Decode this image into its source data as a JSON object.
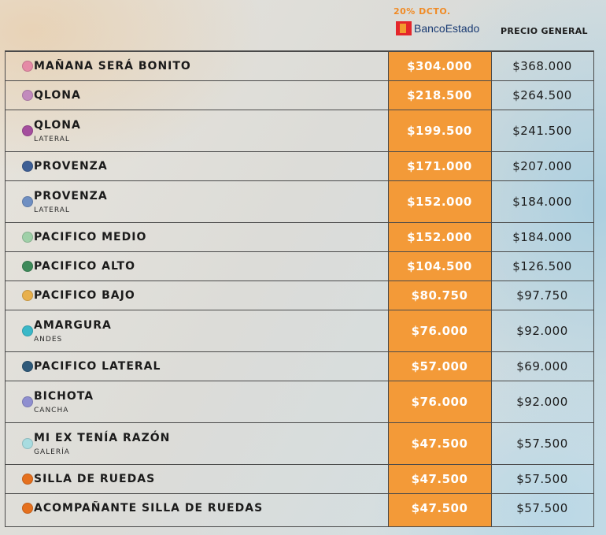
{
  "header": {
    "discount_label": "20% DCTO.",
    "bank_name": "BancoEstado",
    "general_label": "PRECIO GENERAL"
  },
  "rows": [
    {
      "name": "MAÑANA SERÁ BONITO",
      "sub": "",
      "color": "#e58aa6",
      "discount": "$304.000",
      "general": "$368.000"
    },
    {
      "name": "QLONA",
      "sub": "",
      "color": "#c28bbd",
      "discount": "$218.500",
      "general": "$264.500"
    },
    {
      "name": "QLONA",
      "sub": "LATERAL",
      "color": "#a54e9e",
      "discount": "$199.500",
      "general": "$241.500"
    },
    {
      "name": "PROVENZA",
      "sub": "",
      "color": "#3e5f95",
      "discount": "$171.000",
      "general": "$207.000"
    },
    {
      "name": "PROVENZA",
      "sub": "LATERAL",
      "color": "#6f8fc2",
      "discount": "$152.000",
      "general": "$184.000"
    },
    {
      "name": "PACIFICO MEDIO",
      "sub": "",
      "color": "#9fd0a8",
      "discount": "$152.000",
      "general": "$184.000"
    },
    {
      "name": "PACIFICO ALTO",
      "sub": "",
      "color": "#3e8a5a",
      "discount": "$104.500",
      "general": "$126.500"
    },
    {
      "name": "PACIFICO BAJO",
      "sub": "",
      "color": "#e8b04c",
      "discount": "$80.750",
      "general": "$97.750"
    },
    {
      "name": "AMARGURA",
      "sub": "ANDES",
      "color": "#3ab8c8",
      "discount": "$76.000",
      "general": "$92.000"
    },
    {
      "name": "PACIFICO LATERAL",
      "sub": "",
      "color": "#2f5a7a",
      "discount": "$57.000",
      "general": "$69.000"
    },
    {
      "name": "BICHOTA",
      "sub": "CANCHA",
      "color": "#8f8fd0",
      "discount": "$76.000",
      "general": "$92.000"
    },
    {
      "name": "MI EX TENÍA RAZÓN",
      "sub": "GALERÍA",
      "color": "#a8dce0",
      "discount": "$47.500",
      "general": "$57.500"
    },
    {
      "name": "SILLA DE RUEDAS",
      "sub": "",
      "color": "#e5701e",
      "discount": "$47.500",
      "general": "$57.500"
    },
    {
      "name": "ACOMPAÑANTE SILLA DE RUEDAS",
      "sub": "",
      "color": "#e5701e",
      "discount": "$47.500",
      "general": "$57.500"
    }
  ]
}
